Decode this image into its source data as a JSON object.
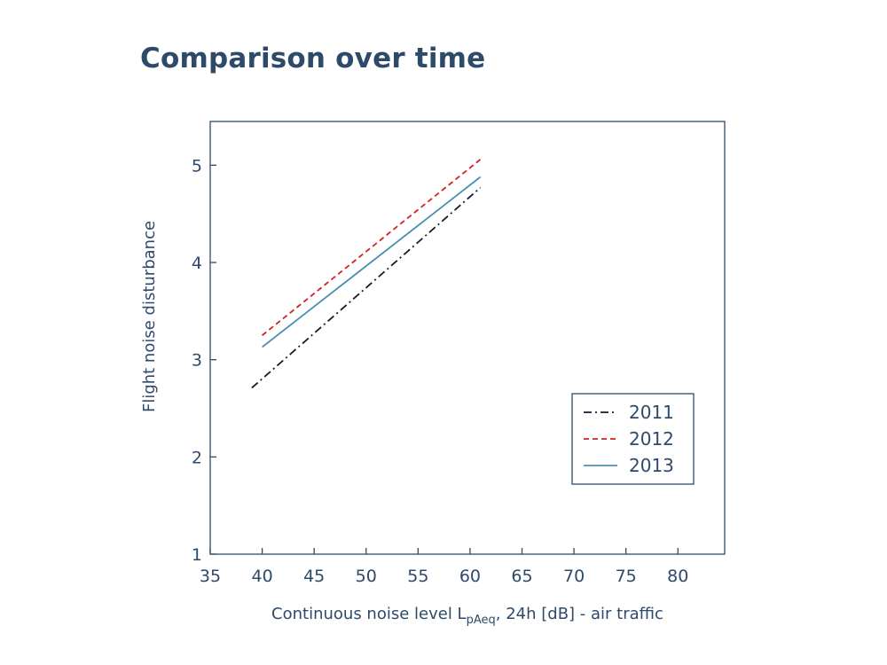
{
  "chart_data": {
    "type": "line",
    "title": "Comparison over time",
    "xlabel_main": "Continuous noise level L",
    "xlabel_sub": "pAeq",
    "xlabel_rest": ", 24h [dB] - air traffic",
    "ylabel": "Flight noise disturbance",
    "xlim": [
      35,
      84.5
    ],
    "ylim": [
      1,
      5.45
    ],
    "xticks": [
      "35",
      "40",
      "45",
      "50",
      "55",
      "60",
      "65",
      "70",
      "75",
      "80"
    ],
    "yticks": [
      "1",
      "2",
      "3",
      "4",
      "5"
    ],
    "grid": false,
    "legend_position": "bottom-right",
    "series": [
      {
        "name": "2011",
        "x": [
          39,
          61
        ],
        "y": [
          2.71,
          4.77
        ],
        "color": "#1a1a2e",
        "dash": "dashdot"
      },
      {
        "name": "2012",
        "x": [
          40,
          61
        ],
        "y": [
          3.25,
          5.06
        ],
        "color": "#d42020",
        "dash": "dashed"
      },
      {
        "name": "2013",
        "x": [
          40,
          61
        ],
        "y": [
          3.13,
          4.88
        ],
        "color": "#4a8fb0",
        "dash": "solid"
      }
    ]
  }
}
